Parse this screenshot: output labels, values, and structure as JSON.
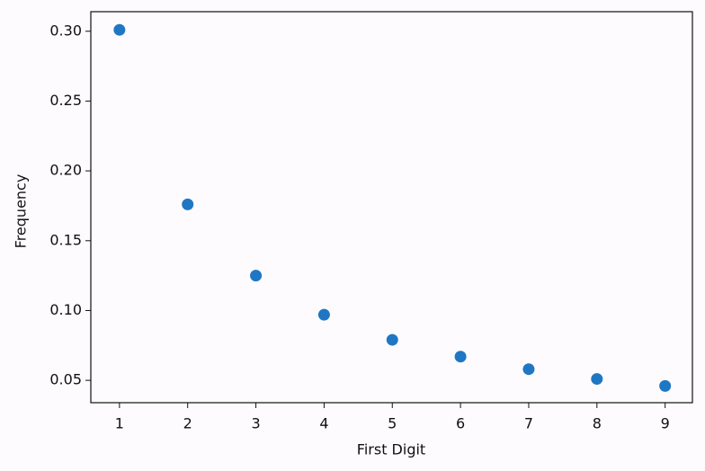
{
  "chart_data": {
    "type": "scatter",
    "x_label": "First Digit",
    "y_label": "Frequency",
    "x": [
      1,
      2,
      3,
      4,
      5,
      6,
      7,
      8,
      9
    ],
    "values": [
      0.301,
      0.176,
      0.125,
      0.097,
      0.079,
      0.067,
      0.058,
      0.051,
      0.046
    ],
    "color": "#1f77c4",
    "xlim": [
      0.58,
      9.4
    ],
    "ylim": [
      0.034,
      0.314
    ],
    "xticks": [
      1,
      2,
      3,
      4,
      5,
      6,
      7,
      8,
      9
    ],
    "yticks": [
      0.05,
      {
        "value": 0.1,
        "label": "0.10"
      },
      0.15,
      {
        "value": 0.2,
        "label": "0.20"
      },
      0.25,
      {
        "value": 0.3,
        "label": "0.30"
      }
    ]
  }
}
